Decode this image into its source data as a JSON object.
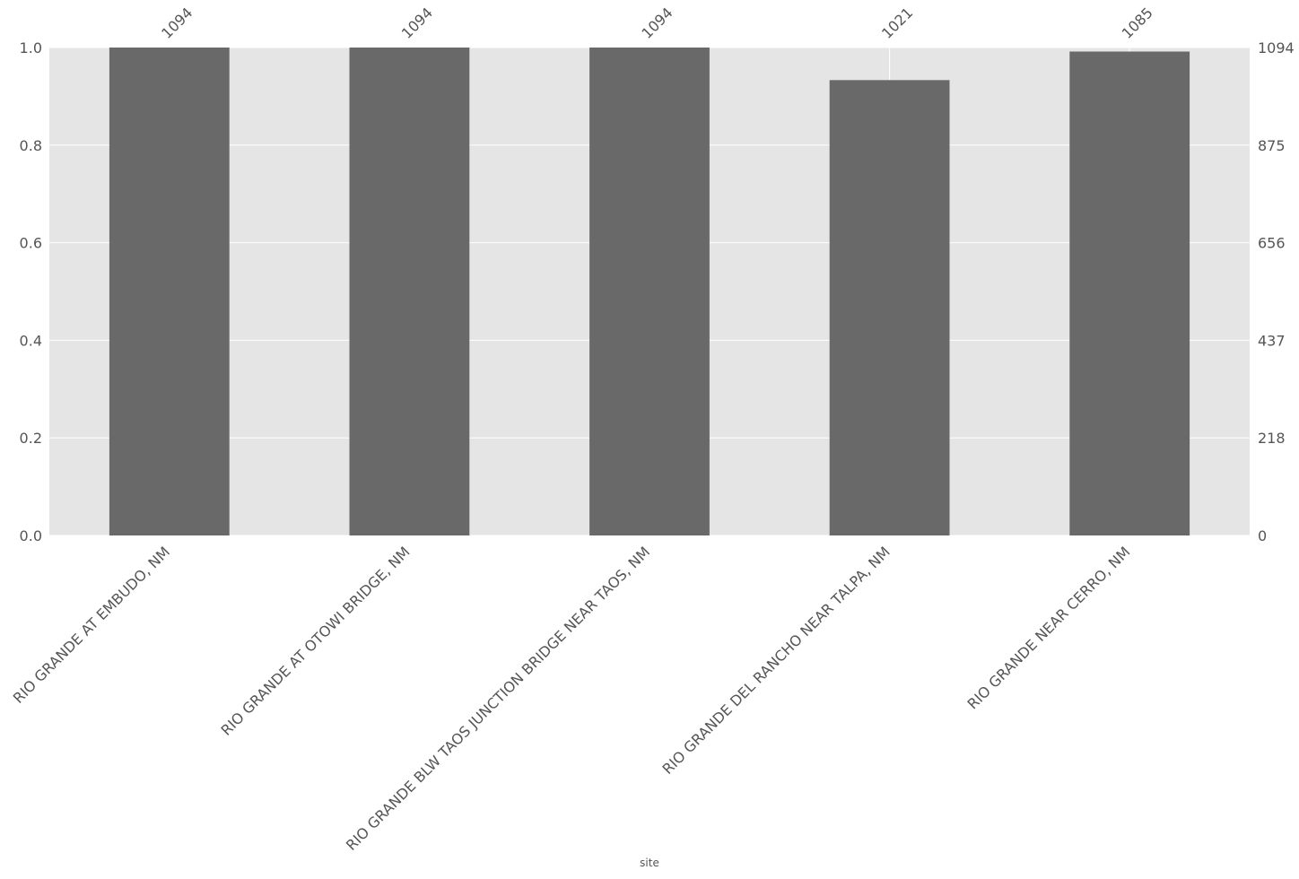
{
  "chart_data": {
    "type": "bar",
    "categories": [
      "RIO GRANDE AT EMBUDO, NM",
      "RIO GRANDE AT OTOWI BRIDGE, NM",
      "RIO GRANDE BLW TAOS JUNCTION BRIDGE NEAR TAOS, NM",
      "RIO GRANDE DEL RANCHO NEAR TALPA, NM",
      "RIO GRANDE NEAR CERRO, NM"
    ],
    "values": [
      1094,
      1094,
      1094,
      1021,
      1085
    ],
    "fractions": [
      1.0,
      1.0,
      1.0,
      0.933,
      0.992
    ],
    "xlabel": "site",
    "ylabel": "",
    "ylim": [
      0,
      1.0
    ],
    "left_ticks": [
      "0.0",
      "0.2",
      "0.4",
      "0.6",
      "0.8",
      "1.0"
    ],
    "right_ticks": [
      "0",
      "218",
      "437",
      "656",
      "875",
      "1094"
    ],
    "grid": true,
    "colors": {
      "bar": "#696969",
      "background": "#e5e5e5",
      "grid": "#ffffff",
      "text": "#555555"
    }
  }
}
